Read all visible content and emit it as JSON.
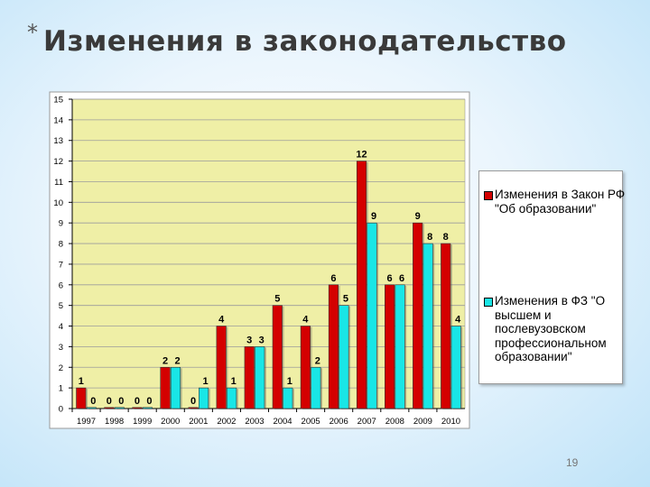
{
  "slide": {
    "title_star": "*",
    "title": "Изменения в законодательство",
    "page_number": "19"
  },
  "chart_data": {
    "type": "bar",
    "categories": [
      "1997",
      "1998",
      "1999",
      "2000",
      "2001",
      "2002",
      "2003",
      "2004",
      "2005",
      "2006",
      "2007",
      "2008",
      "2009",
      "2010"
    ],
    "series": [
      {
        "name": "Изменения в Закон РФ \"Об образовании\"",
        "color": "#d40000",
        "values": [
          1,
          0,
          0,
          2,
          0,
          4,
          3,
          5,
          4,
          6,
          12,
          6,
          9,
          8
        ]
      },
      {
        "name": "Изменения в ФЗ \"О высшем и послевузовском профессиональном образовании\"",
        "color": "#19e6e6",
        "values": [
          0,
          0,
          0,
          2,
          1,
          1,
          3,
          1,
          2,
          5,
          9,
          6,
          8,
          4
        ]
      }
    ],
    "ylim": [
      0,
      15
    ],
    "yticks": [
      0,
      1,
      2,
      3,
      4,
      5,
      6,
      7,
      8,
      9,
      10,
      11,
      12,
      13,
      14,
      15
    ],
    "grid": true,
    "legend_position": "right",
    "plot_background": "#efefa6"
  }
}
